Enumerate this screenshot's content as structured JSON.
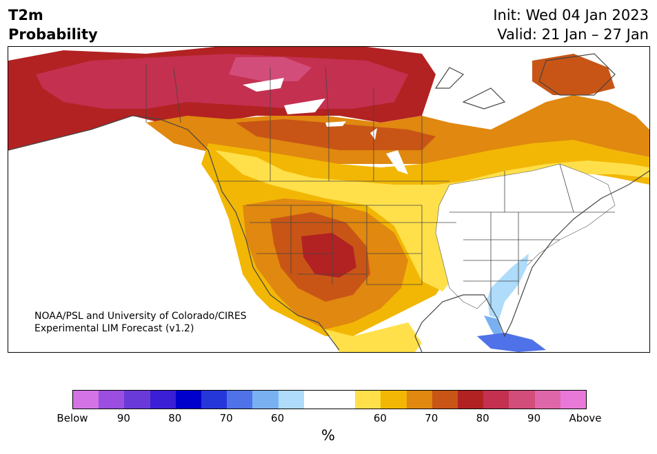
{
  "header": {
    "variable": "T2m",
    "product": "Probability",
    "init": "Init: Wed 04 Jan 2023",
    "valid": "Valid: 21 Jan – 27 Jan"
  },
  "map": {
    "region": "North America",
    "credit_line1": "NOAA/PSL and University of Colorado/CIRES",
    "credit_line2": "Experimental LIM Forecast (v1.2)"
  },
  "colorbar": {
    "unit": "%",
    "colors": [
      "#d473e6",
      "#9b4fe0",
      "#6a3ad9",
      "#3a1fd6",
      "#0000cd",
      "#2637d9",
      "#4f72e8",
      "#79b0f2",
      "#aedcfa",
      "#ffffff",
      "#ffffff",
      "#ffe04a",
      "#f2b705",
      "#e0880f",
      "#c85516",
      "#b22222",
      "#c43050",
      "#d24d7a",
      "#e066aa",
      "#e979d9"
    ],
    "labels": [
      "Below",
      "90",
      "80",
      "70",
      "60",
      "60",
      "70",
      "80",
      "90",
      "Above"
    ]
  }
}
